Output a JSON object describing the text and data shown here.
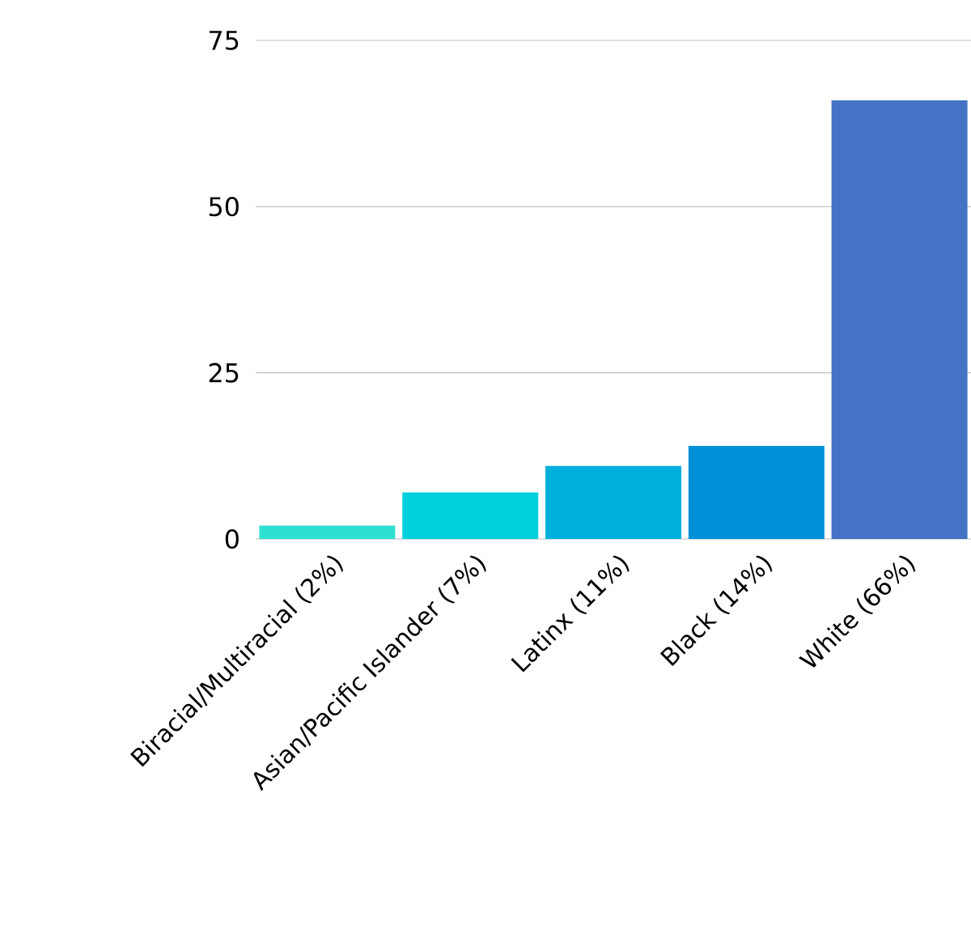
{
  "chart_data": {
    "type": "bar",
    "categories": [
      "Biracial/Multiracial (2%)",
      "Asian/Pacific Islander (7%)",
      "Latinx (11%)",
      "Black (14%)",
      "White (66%)"
    ],
    "values": [
      2,
      7,
      11,
      14,
      66
    ],
    "colors": [
      "#2fe0d2",
      "#00cfdc",
      "#00b0dc",
      "#0090d8",
      "#4472c4"
    ],
    "ylim": [
      0,
      75
    ],
    "yticks": [
      0,
      25,
      50,
      75
    ],
    "grid": "y"
  }
}
